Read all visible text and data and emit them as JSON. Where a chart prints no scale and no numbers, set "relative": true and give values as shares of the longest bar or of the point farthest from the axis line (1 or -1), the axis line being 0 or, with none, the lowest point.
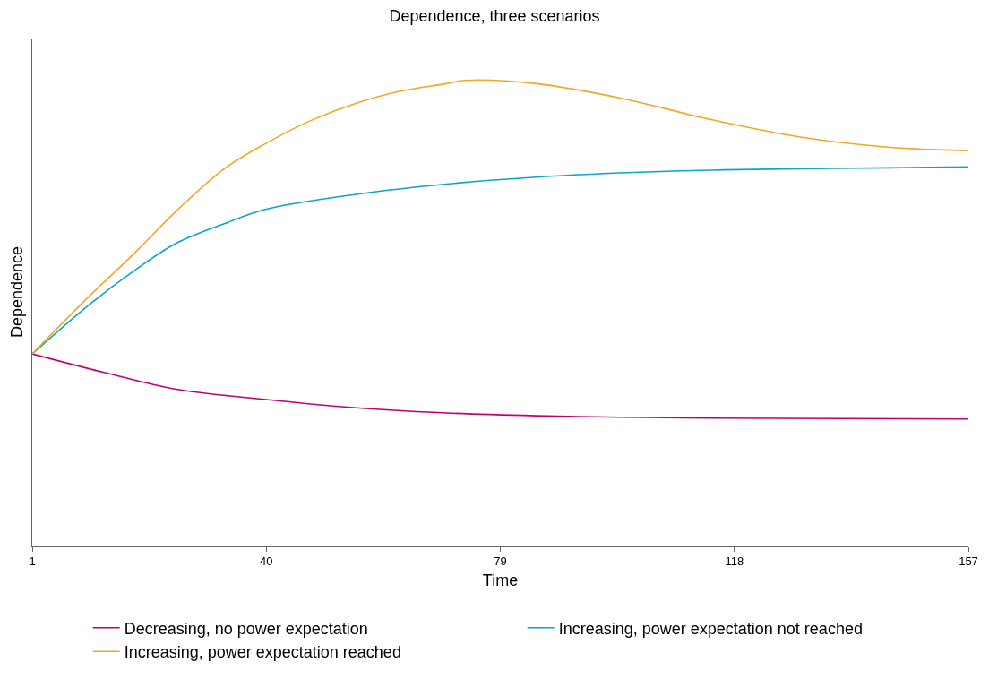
{
  "chart_data": {
    "type": "line",
    "title": "Dependence, three scenarios",
    "xlabel": "Time",
    "ylabel": "Dependence",
    "relative": true,
    "xlim": [
      1,
      157
    ],
    "xticks": [
      1,
      40,
      79,
      118,
      157
    ],
    "legend": "bottom",
    "marker": "none",
    "line_style": "solid",
    "series": [
      {
        "name": "Decreasing, no power expectation",
        "color": "#c0007a",
        "x": [
          1,
          13,
          25,
          40,
          55,
          70,
          85,
          99,
          114,
          157
        ],
        "values": [
          0.412,
          0.372,
          0.336,
          0.314,
          0.296,
          0.285,
          0.279,
          0.276,
          0.274,
          0.272
        ]
      },
      {
        "name": "Increasing, power expectation not reached",
        "color": "#0aa5c8",
        "x": [
          1,
          10.5,
          18,
          25,
          33,
          40,
          55,
          70,
          85,
          99,
          114,
          129,
          144,
          157
        ],
        "values": [
          0.412,
          0.518,
          0.591,
          0.65,
          0.692,
          0.723,
          0.755,
          0.777,
          0.792,
          0.801,
          0.807,
          0.81,
          0.812,
          0.814
        ]
      },
      {
        "name": "Increasing, power expectation reached",
        "color": "#f5a623",
        "x": [
          1,
          10.5,
          18,
          25,
          33,
          40,
          47.5,
          55,
          62,
          70,
          73,
          85,
          99,
          114,
          129,
          144,
          157
        ],
        "values": [
          0.412,
          0.536,
          0.628,
          0.719,
          0.81,
          0.865,
          0.914,
          0.951,
          0.976,
          0.993,
          1,
          0.993,
          0.962,
          0.916,
          0.878,
          0.856,
          0.849
        ]
      }
    ]
  }
}
